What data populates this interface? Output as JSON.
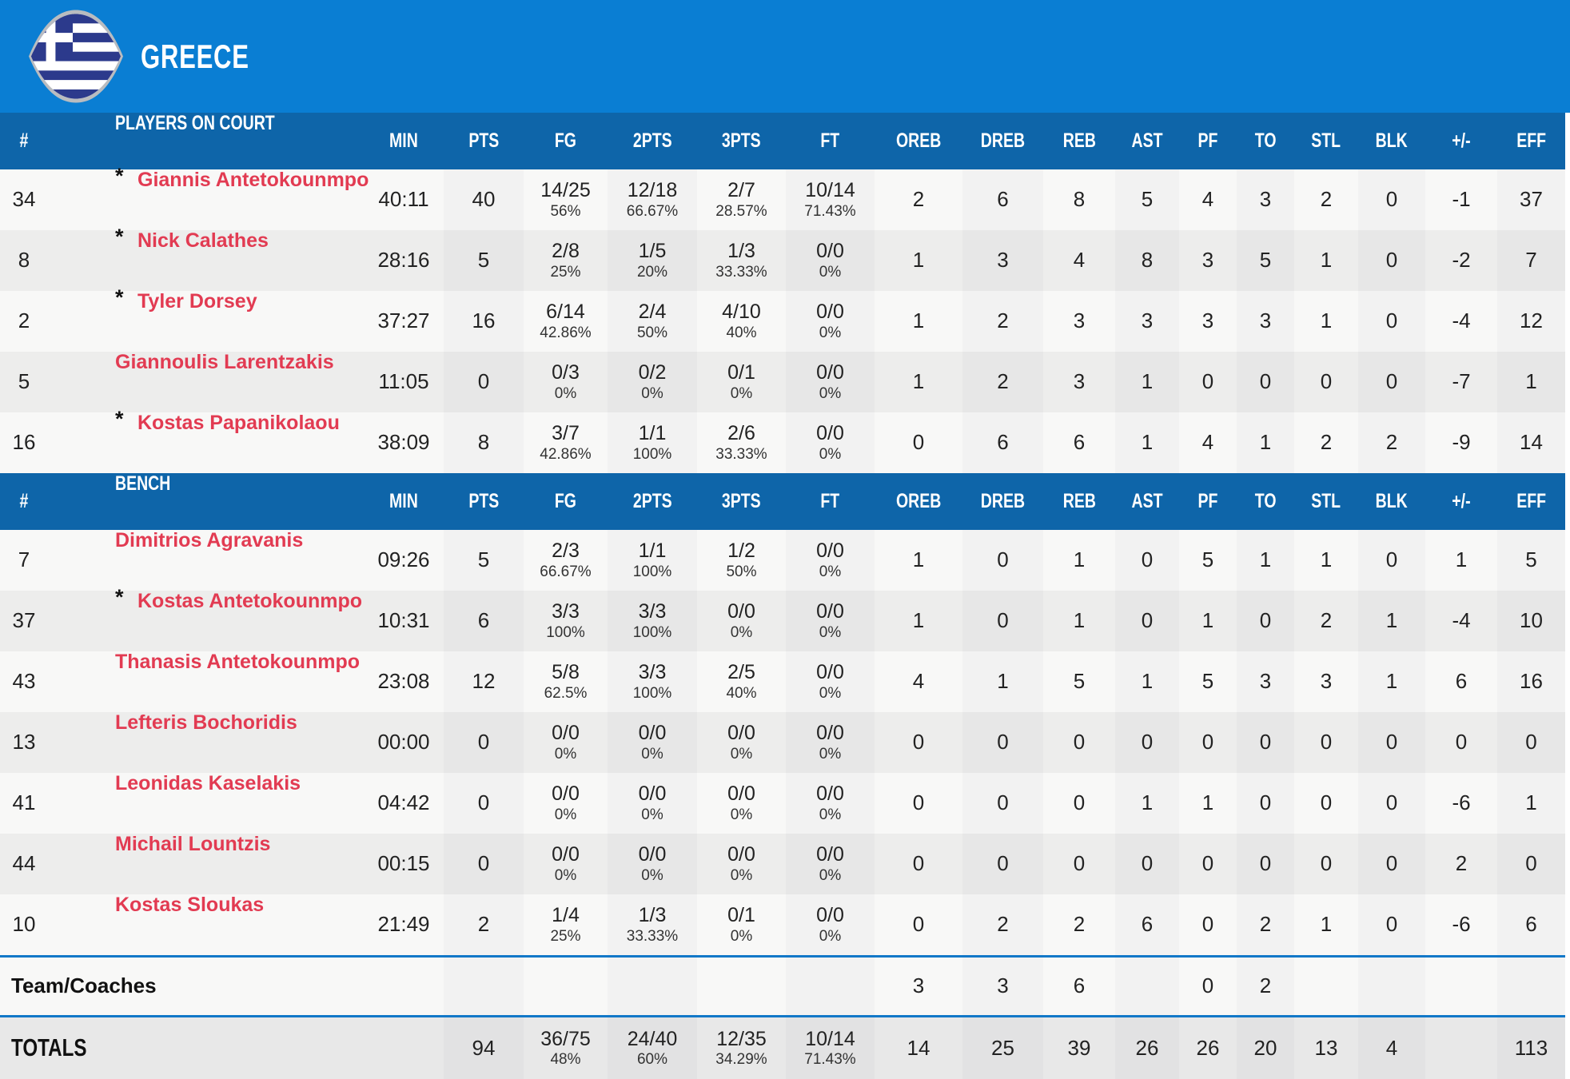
{
  "header": {
    "team": "GREECE"
  },
  "colors": {
    "banner_blue": "#0a7ed3",
    "table_header_blue": "#0e65a9",
    "player_name_red": "#e23b52",
    "separator_blue": "#1278c8",
    "flag_navy": "#2c3a8c",
    "flag_border_silver": "#b9bcc0"
  },
  "columns": [
    "#",
    "PLAYERS ON COURT",
    "MIN",
    "PTS",
    "FG",
    "2PTS",
    "3PTS",
    "FT",
    "OREB",
    "DREB",
    "REB",
    "AST",
    "PF",
    "TO",
    "STL",
    "BLK",
    "+/-",
    "EFF"
  ],
  "bench_label": "BENCH",
  "sections": {
    "on_court": {
      "label": "PLAYERS ON COURT",
      "rows": [
        {
          "num": "34",
          "starter": true,
          "name": "Giannis Antetokounmpo",
          "stats": [
            "40:11",
            "40",
            {
              "m": "14/25",
              "p": "56%"
            },
            {
              "m": "12/18",
              "p": "66.67%"
            },
            {
              "m": "2/7",
              "p": "28.57%"
            },
            {
              "m": "10/14",
              "p": "71.43%"
            },
            "2",
            "6",
            "8",
            "5",
            "4",
            "3",
            "2",
            "0",
            "-1",
            "37"
          ]
        },
        {
          "num": "8",
          "starter": true,
          "name": "Nick Calathes",
          "stats": [
            "28:16",
            "5",
            {
              "m": "2/8",
              "p": "25%"
            },
            {
              "m": "1/5",
              "p": "20%"
            },
            {
              "m": "1/3",
              "p": "33.33%"
            },
            {
              "m": "0/0",
              "p": "0%"
            },
            "1",
            "3",
            "4",
            "8",
            "3",
            "5",
            "1",
            "0",
            "-2",
            "7"
          ]
        },
        {
          "num": "2",
          "starter": true,
          "name": "Tyler Dorsey",
          "stats": [
            "37:27",
            "16",
            {
              "m": "6/14",
              "p": "42.86%"
            },
            {
              "m": "2/4",
              "p": "50%"
            },
            {
              "m": "4/10",
              "p": "40%"
            },
            {
              "m": "0/0",
              "p": "0%"
            },
            "1",
            "2",
            "3",
            "3",
            "3",
            "3",
            "1",
            "0",
            "-4",
            "12"
          ]
        },
        {
          "num": "5",
          "starter": false,
          "name": "Giannoulis Larentzakis",
          "stats": [
            "11:05",
            "0",
            {
              "m": "0/3",
              "p": "0%"
            },
            {
              "m": "0/2",
              "p": "0%"
            },
            {
              "m": "0/1",
              "p": "0%"
            },
            {
              "m": "0/0",
              "p": "0%"
            },
            "1",
            "2",
            "3",
            "1",
            "0",
            "0",
            "0",
            "0",
            "-7",
            "1"
          ]
        },
        {
          "num": "16",
          "starter": true,
          "name": "Kostas Papanikolaou",
          "stats": [
            "38:09",
            "8",
            {
              "m": "3/7",
              "p": "42.86%"
            },
            {
              "m": "1/1",
              "p": "100%"
            },
            {
              "m": "2/6",
              "p": "33.33%"
            },
            {
              "m": "0/0",
              "p": "0%"
            },
            "0",
            "6",
            "6",
            "1",
            "4",
            "1",
            "2",
            "2",
            "-9",
            "14"
          ]
        }
      ]
    },
    "bench": {
      "label": "BENCH",
      "rows": [
        {
          "num": "7",
          "starter": false,
          "name": "Dimitrios Agravanis",
          "stats": [
            "09:26",
            "5",
            {
              "m": "2/3",
              "p": "66.67%"
            },
            {
              "m": "1/1",
              "p": "100%"
            },
            {
              "m": "1/2",
              "p": "50%"
            },
            {
              "m": "0/0",
              "p": "0%"
            },
            "1",
            "0",
            "1",
            "0",
            "5",
            "1",
            "1",
            "0",
            "1",
            "5"
          ]
        },
        {
          "num": "37",
          "starter": true,
          "name": "Kostas Antetokounmpo",
          "stats": [
            "10:31",
            "6",
            {
              "m": "3/3",
              "p": "100%"
            },
            {
              "m": "3/3",
              "p": "100%"
            },
            {
              "m": "0/0",
              "p": "0%"
            },
            {
              "m": "0/0",
              "p": "0%"
            },
            "1",
            "0",
            "1",
            "0",
            "1",
            "0",
            "2",
            "1",
            "-4",
            "10"
          ]
        },
        {
          "num": "43",
          "starter": false,
          "name": "Thanasis Antetokounmpo",
          "stats": [
            "23:08",
            "12",
            {
              "m": "5/8",
              "p": "62.5%"
            },
            {
              "m": "3/3",
              "p": "100%"
            },
            {
              "m": "2/5",
              "p": "40%"
            },
            {
              "m": "0/0",
              "p": "0%"
            },
            "4",
            "1",
            "5",
            "1",
            "5",
            "3",
            "3",
            "1",
            "6",
            "16"
          ]
        },
        {
          "num": "13",
          "starter": false,
          "name": "Lefteris Bochoridis",
          "stats": [
            "00:00",
            "0",
            {
              "m": "0/0",
              "p": "0%"
            },
            {
              "m": "0/0",
              "p": "0%"
            },
            {
              "m": "0/0",
              "p": "0%"
            },
            {
              "m": "0/0",
              "p": "0%"
            },
            "0",
            "0",
            "0",
            "0",
            "0",
            "0",
            "0",
            "0",
            "0",
            "0"
          ]
        },
        {
          "num": "41",
          "starter": false,
          "name": "Leonidas Kaselakis",
          "stats": [
            "04:42",
            "0",
            {
              "m": "0/0",
              "p": "0%"
            },
            {
              "m": "0/0",
              "p": "0%"
            },
            {
              "m": "0/0",
              "p": "0%"
            },
            {
              "m": "0/0",
              "p": "0%"
            },
            "0",
            "0",
            "0",
            "1",
            "1",
            "0",
            "0",
            "0",
            "-6",
            "1"
          ]
        },
        {
          "num": "44",
          "starter": false,
          "name": "Michail Lountzis",
          "stats": [
            "00:15",
            "0",
            {
              "m": "0/0",
              "p": "0%"
            },
            {
              "m": "0/0",
              "p": "0%"
            },
            {
              "m": "0/0",
              "p": "0%"
            },
            {
              "m": "0/0",
              "p": "0%"
            },
            "0",
            "0",
            "0",
            "0",
            "0",
            "0",
            "0",
            "0",
            "2",
            "0"
          ]
        },
        {
          "num": "10",
          "starter": false,
          "name": "Kostas Sloukas",
          "stats": [
            "21:49",
            "2",
            {
              "m": "1/4",
              "p": "25%"
            },
            {
              "m": "1/3",
              "p": "33.33%"
            },
            {
              "m": "0/1",
              "p": "0%"
            },
            {
              "m": "0/0",
              "p": "0%"
            },
            "0",
            "2",
            "2",
            "6",
            "0",
            "2",
            "1",
            "0",
            "-6",
            "6"
          ]
        }
      ]
    }
  },
  "team_coaches": {
    "label": "Team/Coaches",
    "stats": [
      "",
      "",
      "",
      "",
      "",
      "",
      "3",
      "3",
      "6",
      "",
      "0",
      "2",
      "",
      "",
      "",
      ""
    ]
  },
  "totals": {
    "label": "TOTALS",
    "stats": [
      "",
      "94",
      {
        "m": "36/75",
        "p": "48%"
      },
      {
        "m": "24/40",
        "p": "60%"
      },
      {
        "m": "12/35",
        "p": "34.29%"
      },
      {
        "m": "10/14",
        "p": "71.43%"
      },
      "14",
      "25",
      "39",
      "26",
      "26",
      "20",
      "13",
      "4",
      "",
      "113"
    ]
  }
}
